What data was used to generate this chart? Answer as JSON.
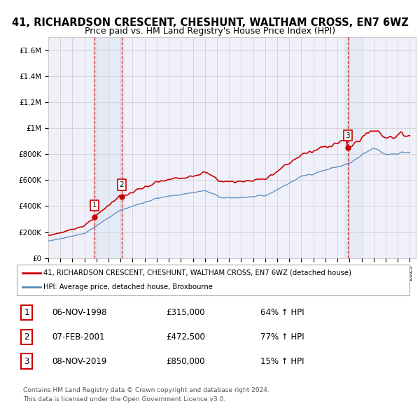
{
  "title": "41, RICHARDSON CRESCENT, CHESHUNT, WALTHAM CROSS, EN7 6WZ",
  "subtitle": "Price paid vs. HM Land Registry's House Price Index (HPI)",
  "ylim": [
    0,
    1700000
  ],
  "yticks": [
    0,
    200000,
    400000,
    600000,
    800000,
    1000000,
    1200000,
    1400000,
    1600000
  ],
  "ytick_labels": [
    "£0",
    "£200K",
    "£400K",
    "£600K",
    "£800K",
    "£1M",
    "£1.2M",
    "£1.4M",
    "£1.6M"
  ],
  "xlim_start": 1995.0,
  "xlim_end": 2025.5,
  "sale_dates": [
    1998.85,
    2001.1,
    2019.85
  ],
  "sale_prices": [
    315000,
    472500,
    850000
  ],
  "sale_labels": [
    "1",
    "2",
    "3"
  ],
  "legend_red": "41, RICHARDSON CRESCENT, CHESHUNT, WALTHAM CROSS, EN7 6WZ (detached house)",
  "legend_blue": "HPI: Average price, detached house, Broxbourne",
  "table_rows": [
    [
      "1",
      "06-NOV-1998",
      "£315,000",
      "64% ↑ HPI"
    ],
    [
      "2",
      "07-FEB-2001",
      "£472,500",
      "77% ↑ HPI"
    ],
    [
      "3",
      "08-NOV-2019",
      "£850,000",
      "15% ↑ HPI"
    ]
  ],
  "footnote1": "Contains HM Land Registry data © Crown copyright and database right 2024.",
  "footnote2": "This data is licensed under the Open Government Licence v3.0.",
  "red_color": "#cc0000",
  "blue_color": "#5588bb",
  "bg_color": "#f0f0fa",
  "highlight_color": "#d0dff0",
  "grid_color": "#cccccc",
  "title_fontsize": 10.5,
  "subtitle_fontsize": 9,
  "tick_fontsize": 7.5
}
